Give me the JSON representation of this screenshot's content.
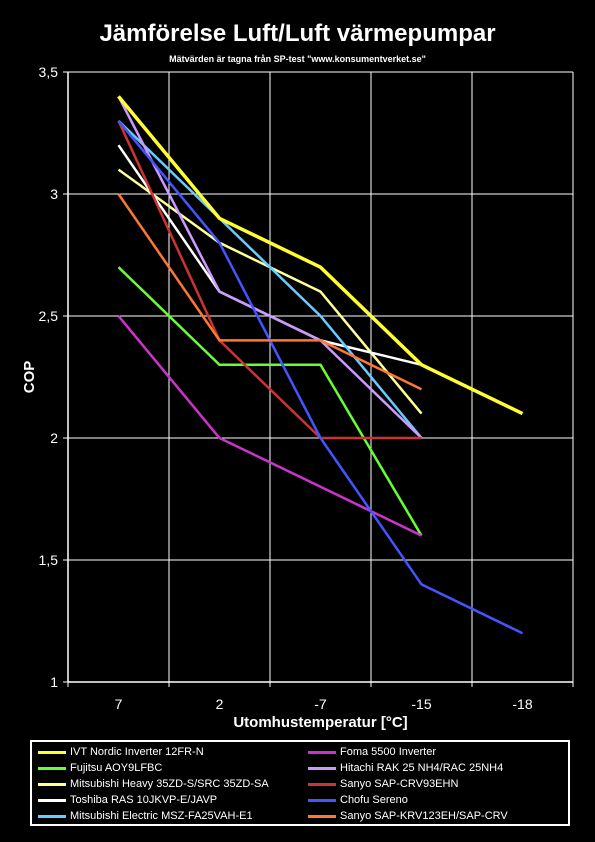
{
  "chart_data": {
    "type": "line",
    "title": "Jämförelse Luft/Luft värmepumpar",
    "subtitle": "Mätvärden är tagna från SP-test \"www.konsumentverket.se\"",
    "xlabel": "Utomhustemperatur [°C]",
    "ylabel": "COP",
    "categories": [
      "7",
      "2",
      "-7",
      "-15",
      "-18"
    ],
    "ylim": [
      1,
      3.5
    ],
    "yticks": [
      "1",
      "1,5",
      "2",
      "2,5",
      "3",
      "3,5"
    ],
    "ytick_values": [
      1,
      1.5,
      2,
      2.5,
      3,
      3.5
    ],
    "grid": true,
    "legend_position": "bottom",
    "series": [
      {
        "name": "IVT Nordic Inverter 12FR-N",
        "color": "#ffff33",
        "width": 3,
        "values": [
          3.4,
          2.9,
          2.7,
          2.3,
          2.1
        ]
      },
      {
        "name": "Fujitsu AOY9LFBC",
        "color": "#66ff33",
        "width": 2,
        "values": [
          2.7,
          2.3,
          2.3,
          1.6,
          null
        ]
      },
      {
        "name": "Mitsubishi Heavy 35ZD-S/SRC 35ZD-SA",
        "color": "#ffff99",
        "width": 2,
        "values": [
          3.1,
          2.8,
          2.6,
          2.1,
          null
        ]
      },
      {
        "name": "Toshiba RAS 10JKVP-E/JAVP",
        "color": "#ffffff",
        "width": 2,
        "values": [
          3.2,
          2.6,
          2.4,
          2.3,
          null
        ]
      },
      {
        "name": "Mitsubishi Electric MSZ-FA25VAH-E1",
        "color": "#66ccff",
        "width": 2,
        "values": [
          3.3,
          2.9,
          2.5,
          2.0,
          null
        ]
      },
      {
        "name": "Foma 5500 Inverter",
        "color": "#cc33cc",
        "width": 2,
        "values": [
          2.5,
          2.0,
          1.8,
          1.6,
          null
        ]
      },
      {
        "name": "Hitachi RAK 25 NH4/RAC 25NH4",
        "color": "#cc99ff",
        "width": 2,
        "values": [
          3.4,
          2.6,
          2.4,
          2.0,
          null
        ]
      },
      {
        "name": "Sanyo SAP-CRV93EHN",
        "color": "#cc3333",
        "width": 2,
        "values": [
          3.3,
          2.4,
          2.0,
          2.0,
          null
        ]
      },
      {
        "name": "Chofu Sereno",
        "color": "#4455ff",
        "width": 2,
        "values": [
          3.3,
          2.8,
          2.0,
          1.4,
          1.2
        ]
      },
      {
        "name": "Sanyo SAP-KRV123EH/SAP-CRV",
        "color": "#ff7733",
        "width": 2,
        "values": [
          3.0,
          2.4,
          2.4,
          2.2,
          null
        ]
      }
    ]
  }
}
